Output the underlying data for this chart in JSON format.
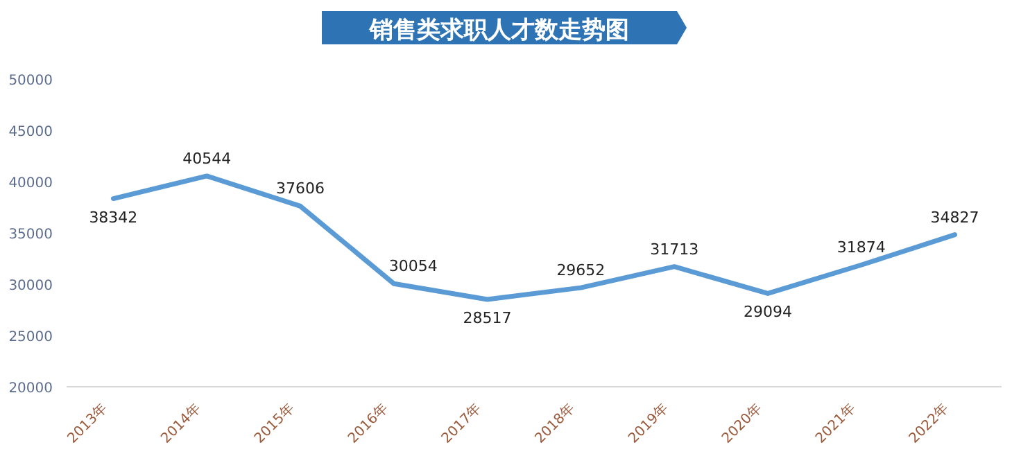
{
  "chart_data": {
    "type": "line",
    "title": "销售类求职人才数走势图",
    "categories": [
      "2013年",
      "2014年",
      "2015年",
      "2016年",
      "2017年",
      "2018年",
      "2019年",
      "2020年",
      "2021年",
      "2022年"
    ],
    "series": [
      {
        "color": "#5b9bd5",
        "values": [
          38342,
          40544,
          37606,
          30054,
          28517,
          29652,
          31713,
          29094,
          31874,
          34827
        ]
      }
    ],
    "ylim": [
      20000,
      50000
    ],
    "yticks": [
      20000,
      25000,
      30000,
      35000,
      40000,
      45000,
      50000
    ],
    "data_labels": true,
    "marker": "none",
    "line_style": "solid"
  }
}
